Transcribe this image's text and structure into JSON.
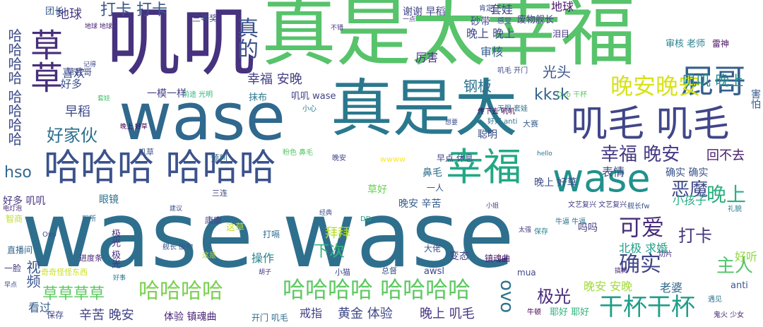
{
  "cloud": {
    "words": [
      {
        "text": "wase wase",
        "color": "#2e6f8e"
      },
      {
        "text": "真是太幸福",
        "color": "#57c36b"
      },
      {
        "text": "叽叽",
        "color": "#46327e"
      },
      {
        "text": "wase",
        "color": "#30688e"
      },
      {
        "text": "真是太",
        "color": "#2a788e"
      },
      {
        "text": "哈哈哈 哈哈哈",
        "color": "#3b528b"
      },
      {
        "text": "幸福",
        "color": "#22a884"
      },
      {
        "text": "wase",
        "color": "#21918c"
      },
      {
        "text": "叽毛 叽毛",
        "color": "#404688"
      },
      {
        "text": "屁哥",
        "color": "#355f8d"
      },
      {
        "text": "草草",
        "color": "#472d7b"
      },
      {
        "text": "哈哈哈哈",
        "color": "#7ad151"
      },
      {
        "text": "哈哈哈哈 哈哈哈哈",
        "color": "#5ec962"
      },
      {
        "text": "晚安晚安",
        "color": "#d8e219"
      },
      {
        "text": "干杯干杯",
        "color": "#1f9e89"
      },
      {
        "text": "可爱",
        "color": "#472c7a"
      },
      {
        "text": "确实",
        "color": "#404588"
      },
      {
        "text": "晚上",
        "color": "#2ab07f"
      },
      {
        "text": "幸福 晚安",
        "color": "#443983"
      },
      {
        "text": "恶魔",
        "color": "#3e4989"
      },
      {
        "text": "真的",
        "color": "#3b528b"
      },
      {
        "text": "主人",
        "color": "#52c569"
      },
      {
        "text": "打卡",
        "color": "#46337f"
      },
      {
        "text": "极光",
        "color": "#472a7a"
      },
      {
        "text": "ovo",
        "color": "#2c728e"
      },
      {
        "text": "叽叽 晚上",
        "color": "#21918c"
      },
      {
        "text": "hso",
        "color": "#31688e"
      },
      {
        "text": "好家伙",
        "color": "#2d708e"
      },
      {
        "text": "打卡 打卡",
        "color": "#39568c"
      },
      {
        "text": "草草草草",
        "color": "#5ec962"
      },
      {
        "text": "kksk",
        "color": "#33638d"
      },
      {
        "text": "钢板",
        "color": "#2c728e"
      },
      {
        "text": "光头",
        "color": "#38588c"
      },
      {
        "text": "幸福 安晚",
        "color": "#433e85"
      },
      {
        "text": "哈哈哈哈 哈哈哈哈",
        "color": "#3d4d8a"
      },
      {
        "text": "下次",
        "color": "#31b57b"
      },
      {
        "text": "黄金 体验",
        "color": "#3f4788"
      },
      {
        "text": "晚上 叽毛",
        "color": "#453581"
      },
      {
        "text": "辛苦 晚安",
        "color": "#414487"
      },
      {
        "text": "回不去",
        "color": "#481a6c"
      },
      {
        "text": "地球",
        "color": "#453882"
      },
      {
        "text": "早稻",
        "color": "#3e4a89"
      },
      {
        "text": "喜欢",
        "color": "#3b528b"
      },
      {
        "text": "好多",
        "color": "#3b518b"
      },
      {
        "text": "小孩子",
        "color": "#27ad81"
      },
      {
        "text": "北极 求婚",
        "color": "#1fa188"
      },
      {
        "text": "拜拜",
        "color": "#b5de2b"
      },
      {
        "text": "视频",
        "color": "#3a548c"
      },
      {
        "text": "看过",
        "color": "#355f8d"
      },
      {
        "text": "晚安 安晚",
        "color": "#a0da39"
      },
      {
        "text": "老婆",
        "color": "#30688e"
      },
      {
        "text": "戒指",
        "color": "#424086"
      },
      {
        "text": "操作",
        "color": "#25848e"
      },
      {
        "text": "好听",
        "color": "#90d743"
      },
      {
        "text": "确实 确实",
        "color": "#3a538b"
      },
      {
        "text": "表情",
        "color": "#3f4889"
      },
      {
        "text": "聪明",
        "color": "#3c4f8a"
      },
      {
        "text": "厉害",
        "color": "#46337f"
      },
      {
        "text": "审核",
        "color": "#365c8d"
      },
      {
        "text": "晚上 晚上",
        "color": "#3e4989"
      },
      {
        "text": "套娃",
        "color": "#414487"
      },
      {
        "text": "谢谢 早稻",
        "color": "#404688"
      },
      {
        "text": "砂带",
        "color": "#3f4788"
      },
      {
        "text": "废物舰长",
        "color": "#433d84"
      },
      {
        "text": "地球",
        "color": "#481769"
      },
      {
        "text": "团长",
        "color": "#38598c"
      },
      {
        "text": "草屁哥",
        "color": "#3e4989"
      },
      {
        "text": "一模一样",
        "color": "#433e85"
      },
      {
        "text": "抹布",
        "color": "#2a788e"
      },
      {
        "text": "叽叽 wase",
        "color": "#424186"
      },
      {
        "text": "审核 老师",
        "color": "#27808e"
      },
      {
        "text": "雷神",
        "color": "#471063"
      },
      {
        "text": "害怕",
        "color": "#38598c"
      },
      {
        "text": "晚安 辛苦",
        "color": "#365d8d"
      },
      {
        "text": "晚上 好草",
        "color": "#3e4c8a"
      },
      {
        "text": "鼻毛",
        "color": "#2e6e8e"
      },
      {
        "text": "一人",
        "color": "#3b528b"
      },
      {
        "text": "草好",
        "color": "#6ece58"
      },
      {
        "text": "眼镜",
        "color": "#2c718e"
      },
      {
        "text": "好多 叽叽",
        "color": "#46337f"
      },
      {
        "text": "智商",
        "color": "#bddf26"
      },
      {
        "text": "直播间",
        "color": "#32658e"
      },
      {
        "text": "一脸",
        "color": "#453781"
      },
      {
        "text": "保存",
        "color": "#3f4889"
      },
      {
        "text": "体验 镇魂曲",
        "color": "#482475"
      },
      {
        "text": "开门 叽毛",
        "color": "#2f6c8e"
      },
      {
        "text": "镇魂曲",
        "color": "#471164"
      },
      {
        "text": "变态",
        "color": "#404688"
      },
      {
        "text": "大佬",
        "color": "#3b528b"
      },
      {
        "text": "awsl",
        "color": "#3f4788"
      },
      {
        "text": "mua",
        "color": "#3f4788"
      },
      {
        "text": "耶好 耶好",
        "color": "#2db27d"
      },
      {
        "text": "anti",
        "color": "#39558c"
      },
      {
        "text": "吗吗",
        "color": "#453882"
      },
      {
        "text": "打嗝",
        "color": "#2f6b8e"
      },
      {
        "text": "这草",
        "color": "#c0df25"
      },
      {
        "text": "康康",
        "color": "#404688"
      },
      {
        "text": "进度条",
        "color": "#482475"
      },
      {
        "text": "极光 极光",
        "color": "#46307e"
      },
      {
        "text": "叽毛 开门",
        "color": "#3e4a89"
      },
      {
        "text": "早点 休息",
        "color": "#3f4889"
      },
      {
        "text": "前途 光明",
        "color": "#31b57b"
      },
      {
        "text": "Ovo 干杯",
        "color": "#5ec962"
      },
      {
        "text": "文艺复兴 文艺复兴",
        "color": "#433e85"
      },
      {
        "text": "舰长fw",
        "color": "#3a548c"
      },
      {
        "text": "礼貌",
        "color": "#26828e"
      },
      {
        "text": "牛逼 牛逼",
        "color": "#2e6e8e"
      },
      {
        "text": "奇奇怪怪东西",
        "color": "#c8e020"
      },
      {
        "text": "晚上 好草",
        "color": "#440154"
      },
      {
        "text": "Ovo",
        "color": "#3b528b"
      },
      {
        "text": "无限 套娃",
        "color": "#2d708e"
      },
      {
        "text": "传下去 叽叽",
        "color": "#440154"
      },
      {
        "text": "好好 anti",
        "color": "#2c728e"
      },
      {
        "text": "大赛",
        "color": "#365d8d"
      },
      {
        "text": "牛顿",
        "color": "#440154"
      },
      {
        "text": "叽草",
        "color": "#3b528b"
      },
      {
        "text": "预判",
        "color": "#31688e"
      },
      {
        "text": "粉色 鼻毛",
        "color": "#56c667"
      },
      {
        "text": "泪目",
        "color": "#453781"
      },
      {
        "text": "感觉",
        "color": "#39558c"
      },
      {
        "text": "肯定",
        "color": "#3e4989"
      },
      {
        "text": "wwww",
        "color": "#fde725"
      },
      {
        "text": "三等奖",
        "color": "#3e4989"
      },
      {
        "text": "鬼火 少女",
        "color": "#481f70"
      },
      {
        "text": "切片",
        "color": "#482878"
      },
      {
        "text": "小姐",
        "color": "#404688"
      },
      {
        "text": "保存",
        "color": "#26828e"
      },
      {
        "text": "总督",
        "color": "#3b528b"
      },
      {
        "text": "小猫",
        "color": "#404688"
      },
      {
        "text": "胡子",
        "color": "#46307e"
      },
      {
        "text": "这是",
        "color": "#b8de29"
      },
      {
        "text": "厕所",
        "color": "#2e6e8e"
      },
      {
        "text": "建议",
        "color": "#3b518b"
      },
      {
        "text": "舰长 废物",
        "color": "#38598c"
      },
      {
        "text": "地球 地球",
        "color": "#482173"
      },
      {
        "text": "电灯泡",
        "color": "#482878"
      },
      {
        "text": "hello",
        "color": "#2d708e"
      },
      {
        "text": "太强",
        "color": "#46307e"
      },
      {
        "text": "晚安",
        "color": "#404688"
      },
      {
        "text": "经典",
        "color": "#3b528b"
      },
      {
        "text": "好事",
        "color": "#2a788e"
      },
      {
        "text": "套娃",
        "color": "#4ac16d"
      },
      {
        "text": "一点",
        "color": "#453882"
      },
      {
        "text": "想要",
        "color": "#3b528b"
      },
      {
        "text": "小心",
        "color": "#2a788e"
      },
      {
        "text": "DD",
        "color": "#1fa188"
      },
      {
        "text": "三连",
        "color": "#3e4989"
      },
      {
        "text": "不错",
        "color": "#46337f"
      },
      {
        "text": "早点",
        "color": "#3b528b"
      },
      {
        "text": "记得",
        "color": "#3e4989"
      },
      {
        "text": "遇见",
        "color": "#2c728e"
      },
      {
        "text": "搞笑",
        "color": "#482878"
      }
    ]
  }
}
